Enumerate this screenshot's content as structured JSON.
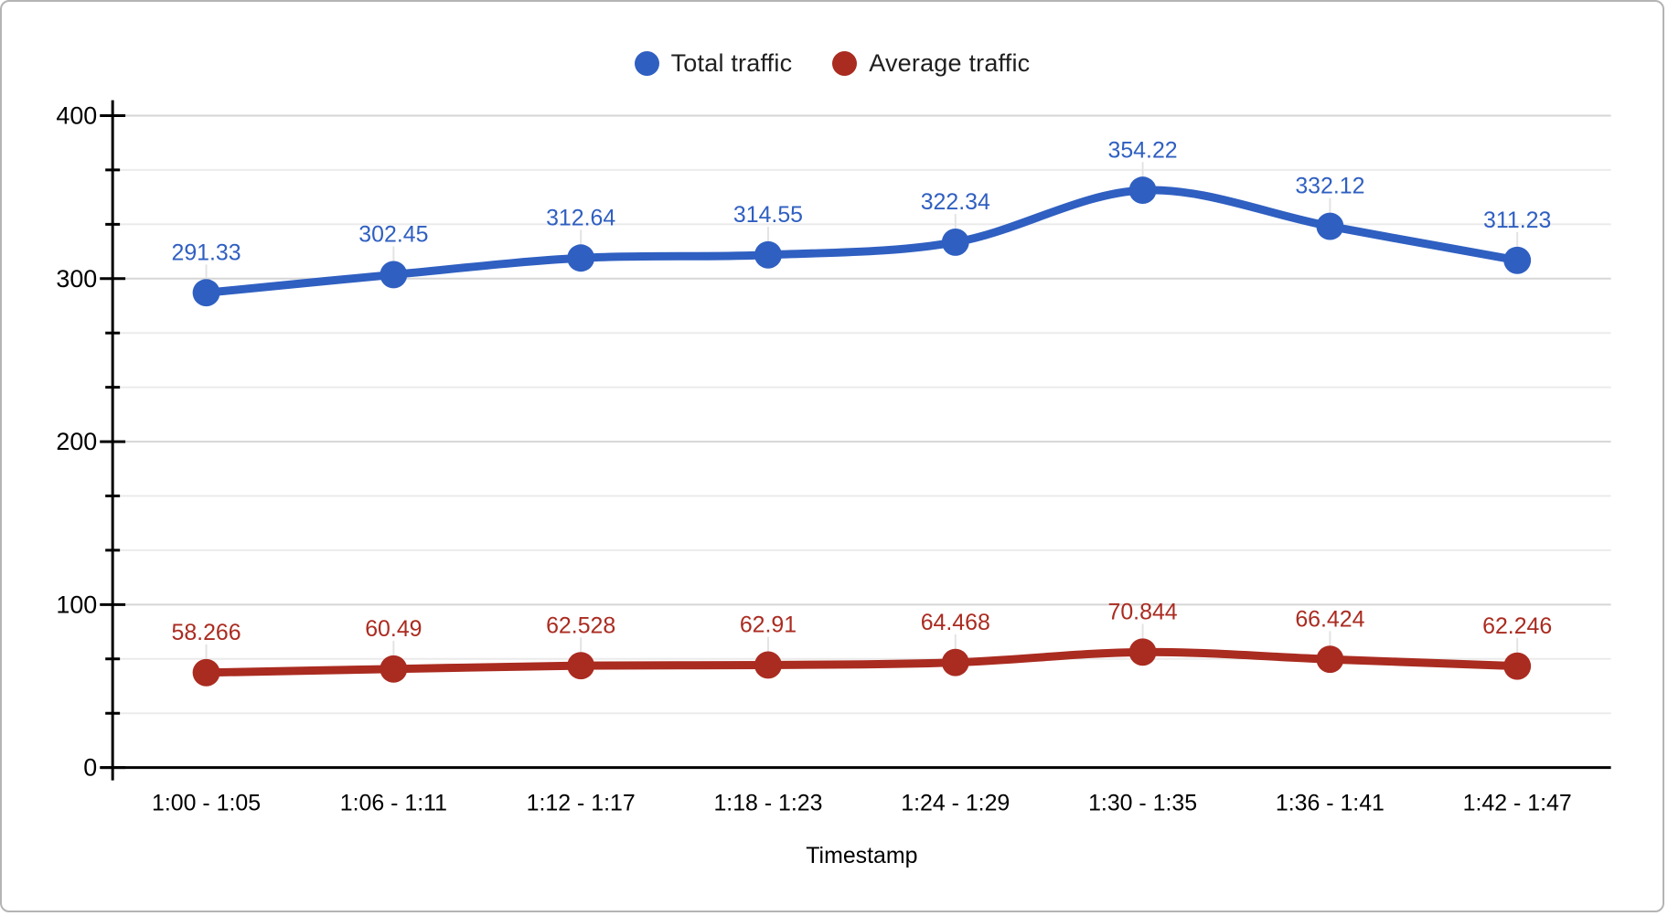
{
  "chart_data": {
    "type": "line",
    "smooth": true,
    "title": "",
    "xlabel": "Timestamp",
    "ylabel": "",
    "categories": [
      "1:00 - 1:05",
      "1:06 - 1:11",
      "1:12 - 1:17",
      "1:18 - 1:23",
      "1:24 - 1:29",
      "1:30 - 1:35",
      "1:36 - 1:41",
      "1:42 - 1:47"
    ],
    "series": [
      {
        "name": "Total traffic",
        "color": "#2f5fc1",
        "values": [
          291.33,
          302.45,
          312.64,
          314.55,
          322.34,
          354.22,
          332.12,
          311.23
        ],
        "labels": [
          "291.33",
          "302.45",
          "312.64",
          "314.55",
          "322.34",
          "354.22",
          "332.12",
          "311.23"
        ]
      },
      {
        "name": "Average traffic",
        "color": "#aa2b20",
        "values": [
          58.266,
          60.49,
          62.528,
          62.91,
          64.468,
          70.844,
          66.424,
          62.246
        ],
        "labels": [
          "58.266",
          "60.49",
          "62.528",
          "62.91",
          "64.468",
          "70.844",
          "66.424",
          "62.246"
        ]
      }
    ],
    "ylim": [
      0,
      400
    ],
    "yticks": [
      {
        "value": 0,
        "label": "0"
      },
      {
        "value": 100,
        "label": "100"
      },
      {
        "value": 200,
        "label": "200"
      },
      {
        "value": 300,
        "label": "300"
      },
      {
        "value": 400,
        "label": "400"
      }
    ],
    "minor_ytick_step": 33.3333,
    "grid": true,
    "legend_position": "top",
    "point_labels": true
  },
  "style": {
    "background": "#ffffff",
    "border_color": "#b4b4b4",
    "axis_color": "#000000",
    "major_grid_color": "#d6d6d6",
    "minor_grid_color": "#ebebeb",
    "leader_line_color": "#e3e3e3",
    "tick_label_color": "#000000",
    "axis_title_color": "#000000"
  }
}
